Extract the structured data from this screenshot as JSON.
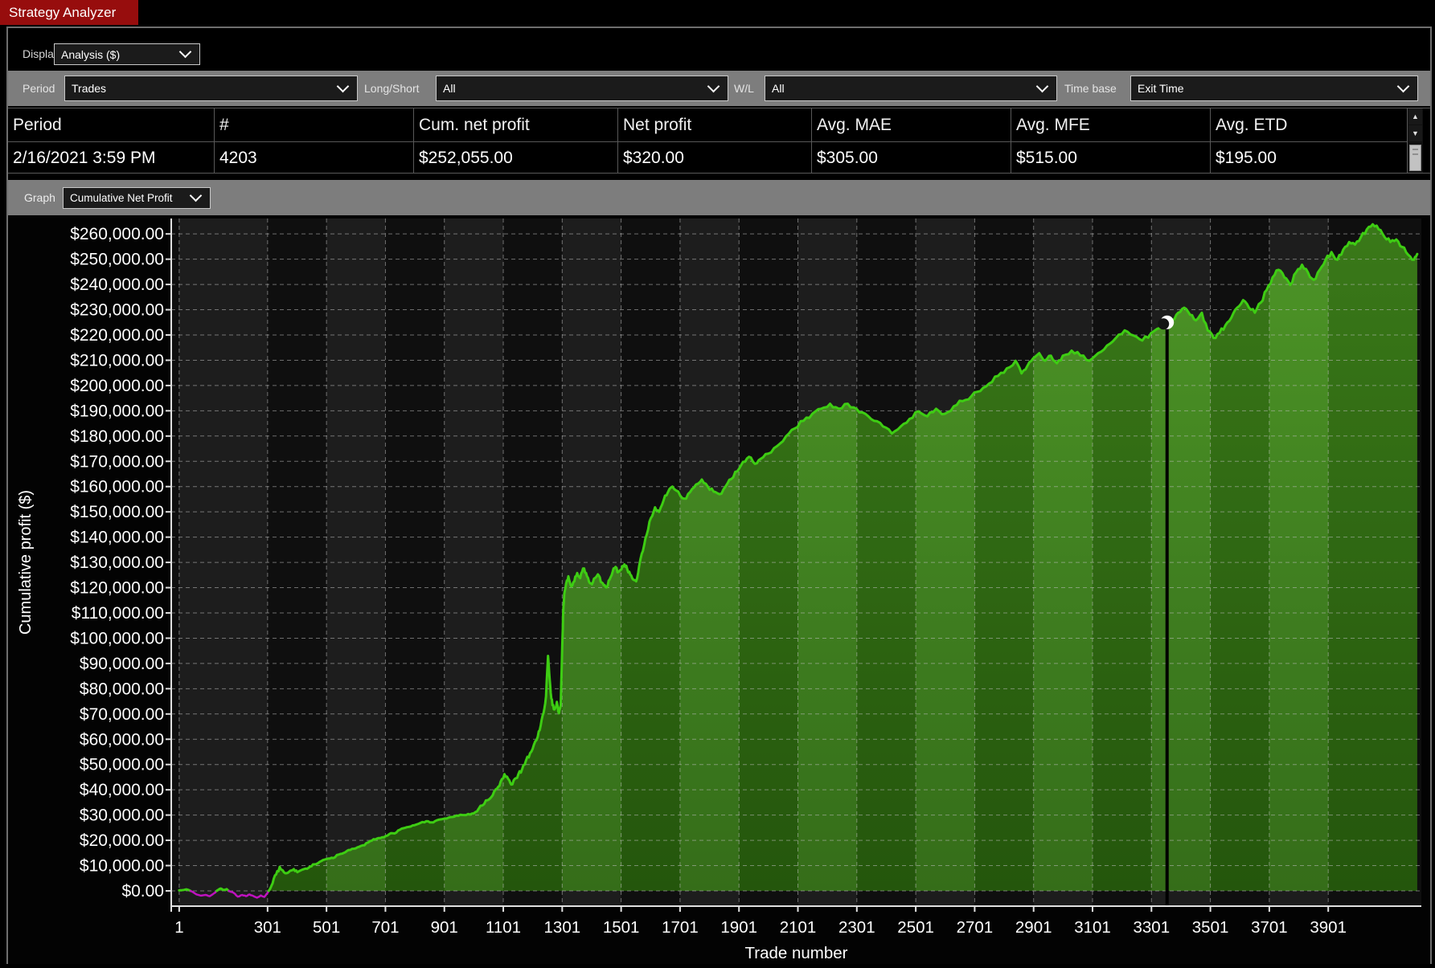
{
  "tab": {
    "title": "Strategy Analyzer"
  },
  "display": {
    "label": "Display",
    "value": "Analysis ($)"
  },
  "filters": {
    "period": {
      "label": "Period",
      "value": "Trades"
    },
    "long_short": {
      "label": "Long/Short",
      "value": "All"
    },
    "wl": {
      "label": "W/L",
      "value": "All"
    },
    "time_base": {
      "label": "Time base",
      "value": "Exit Time"
    }
  },
  "table": {
    "columns": [
      "Period",
      "#",
      "Cum. net profit",
      "Net profit",
      "Avg. MAE",
      "Avg. MFE",
      "Avg. ETD"
    ],
    "rows": [
      [
        "2/16/2021 3:59 PM",
        "4203",
        "$252,055.00",
        "$320.00",
        "$305.00",
        "$515.00",
        "$195.00"
      ]
    ]
  },
  "graph": {
    "label": "Graph",
    "value": "Cumulative Net Profit"
  },
  "icons": {
    "scroll_up": "▲",
    "scroll_down": "▼"
  },
  "chart_data": {
    "type": "area",
    "title": "Cumulative Net Profit",
    "xlabel": "Trade number",
    "ylabel": "Cumulative profit ($)",
    "xlim": [
      -26,
      4217
    ],
    "ylim": [
      -6050,
      266100
    ],
    "grid": "dashed",
    "x_ticks": [
      1,
      301,
      501,
      701,
      901,
      1101,
      1301,
      1501,
      1701,
      1901,
      2101,
      2301,
      2501,
      2701,
      2901,
      3101,
      3301,
      3501,
      3701,
      3901
    ],
    "y_ticks": [
      0,
      10000,
      20000,
      30000,
      40000,
      50000,
      60000,
      70000,
      80000,
      90000,
      100000,
      110000,
      120000,
      130000,
      140000,
      150000,
      160000,
      170000,
      180000,
      190000,
      200000,
      210000,
      220000,
      230000,
      240000,
      250000,
      260000
    ],
    "y_tick_labels": [
      "$0.00",
      "$10,000.00",
      "$20,000.00",
      "$30,000.00",
      "$40,000.00",
      "$50,000.00",
      "$60,000.00",
      "$70,000.00",
      "$80,000.00",
      "$90,000.00",
      "$100,000.00",
      "$110,000.00",
      "$120,000.00",
      "$130,000.00",
      "$140,000.00",
      "$150,000.00",
      "$160,000.00",
      "$170,000.00",
      "$180,000.00",
      "$190,000.00",
      "$200,000.00",
      "$210,000.00",
      "$220,000.00",
      "$230,000.00",
      "$240,000.00",
      "$250,000.00",
      "$260,000.00"
    ],
    "colors": {
      "positive_line": "#3ecd13",
      "negative_line": "#bf12bf",
      "fill_top": "#45901e",
      "fill_bottom": "#2c670f",
      "gridline": "#bebebe",
      "axis": "#e0e0e0",
      "crosshair": "#000000",
      "marker": "#ffffff",
      "plot_bg": "#131313",
      "tab_red": "#970d0d",
      "bar_gray": "#7d7d7d"
    },
    "crosshair": {
      "trade": 3354,
      "value": 225000
    },
    "series": [
      {
        "name": "Cumulative net profit",
        "points": [
          [
            1,
            200
          ],
          [
            25,
            600
          ],
          [
            45,
            -300
          ],
          [
            60,
            -1400
          ],
          [
            75,
            -1900
          ],
          [
            90,
            -1600
          ],
          [
            105,
            -2100
          ],
          [
            120,
            -900
          ],
          [
            132,
            300
          ],
          [
            142,
            900
          ],
          [
            152,
            400
          ],
          [
            162,
            700
          ],
          [
            172,
            -200
          ],
          [
            185,
            -700
          ],
          [
            200,
            -2300
          ],
          [
            215,
            -1600
          ],
          [
            228,
            -2100
          ],
          [
            240,
            -1400
          ],
          [
            252,
            -2000
          ],
          [
            265,
            -2700
          ],
          [
            278,
            -1800
          ],
          [
            290,
            -2400
          ],
          [
            300,
            -900
          ],
          [
            308,
            500
          ],
          [
            318,
            3000
          ],
          [
            330,
            6500
          ],
          [
            342,
            9500
          ],
          [
            352,
            8200
          ],
          [
            365,
            7000
          ],
          [
            378,
            8000
          ],
          [
            390,
            8600
          ],
          [
            402,
            7400
          ],
          [
            415,
            8200
          ],
          [
            430,
            8800
          ],
          [
            445,
            9600
          ],
          [
            460,
            10500
          ],
          [
            478,
            11500
          ],
          [
            495,
            12400
          ],
          [
            512,
            12800
          ],
          [
            530,
            13300
          ],
          [
            548,
            14600
          ],
          [
            565,
            15300
          ],
          [
            582,
            16200
          ],
          [
            600,
            16800
          ],
          [
            618,
            17800
          ],
          [
            636,
            18900
          ],
          [
            655,
            19900
          ],
          [
            672,
            20700
          ],
          [
            690,
            21200
          ],
          [
            708,
            21900
          ],
          [
            726,
            22800
          ],
          [
            744,
            23900
          ],
          [
            762,
            24800
          ],
          [
            780,
            25300
          ],
          [
            800,
            26000
          ],
          [
            820,
            26900
          ],
          [
            840,
            27600
          ],
          [
            858,
            27100
          ],
          [
            875,
            27900
          ],
          [
            895,
            28400
          ],
          [
            915,
            29000
          ],
          [
            935,
            29400
          ],
          [
            955,
            30100
          ],
          [
            975,
            30000
          ],
          [
            995,
            30600
          ],
          [
            1012,
            31500
          ],
          [
            1030,
            33800
          ],
          [
            1048,
            35900
          ],
          [
            1065,
            37800
          ],
          [
            1080,
            40500
          ],
          [
            1092,
            43200
          ],
          [
            1105,
            46200
          ],
          [
            1118,
            44200
          ],
          [
            1128,
            42100
          ],
          [
            1140,
            44300
          ],
          [
            1152,
            46100
          ],
          [
            1165,
            48200
          ],
          [
            1178,
            51500
          ],
          [
            1192,
            54500
          ],
          [
            1205,
            57800
          ],
          [
            1218,
            61000
          ],
          [
            1228,
            65500
          ],
          [
            1238,
            70500
          ],
          [
            1246,
            77000
          ],
          [
            1253,
            93000
          ],
          [
            1257,
            86000
          ],
          [
            1262,
            78500
          ],
          [
            1268,
            73500
          ],
          [
            1275,
            71800
          ],
          [
            1283,
            74800
          ],
          [
            1290,
            70300
          ],
          [
            1296,
            73500
          ],
          [
            1301,
            96000
          ],
          [
            1304,
            109000
          ],
          [
            1308,
            117500
          ],
          [
            1314,
            121500
          ],
          [
            1322,
            124500
          ],
          [
            1332,
            120500
          ],
          [
            1342,
            122500
          ],
          [
            1352,
            125800
          ],
          [
            1362,
            123800
          ],
          [
            1372,
            127600
          ],
          [
            1382,
            125800
          ],
          [
            1392,
            122300
          ],
          [
            1402,
            121300
          ],
          [
            1412,
            123800
          ],
          [
            1422,
            125300
          ],
          [
            1432,
            122300
          ],
          [
            1442,
            121000
          ],
          [
            1452,
            120100
          ],
          [
            1462,
            123200
          ],
          [
            1472,
            126200
          ],
          [
            1482,
            128200
          ],
          [
            1492,
            126200
          ],
          [
            1502,
            127200
          ],
          [
            1512,
            129200
          ],
          [
            1522,
            127200
          ],
          [
            1532,
            125200
          ],
          [
            1542,
            123200
          ],
          [
            1552,
            122500
          ],
          [
            1562,
            128500
          ],
          [
            1575,
            134500
          ],
          [
            1588,
            141000
          ],
          [
            1602,
            147500
          ],
          [
            1616,
            151800
          ],
          [
            1630,
            150000
          ],
          [
            1645,
            154500
          ],
          [
            1660,
            157800
          ],
          [
            1675,
            160000
          ],
          [
            1695,
            158000
          ],
          [
            1715,
            155200
          ],
          [
            1735,
            157800
          ],
          [
            1755,
            160800
          ],
          [
            1775,
            162800
          ],
          [
            1795,
            160000
          ],
          [
            1815,
            158000
          ],
          [
            1835,
            157000
          ],
          [
            1855,
            160000
          ],
          [
            1875,
            163000
          ],
          [
            1895,
            166000
          ],
          [
            1915,
            169800
          ],
          [
            1935,
            171800
          ],
          [
            1955,
            169000
          ],
          [
            1975,
            171000
          ],
          [
            2000,
            173000
          ],
          [
            2030,
            176000
          ],
          [
            2060,
            179800
          ],
          [
            2090,
            183000
          ],
          [
            2120,
            186000
          ],
          [
            2150,
            188800
          ],
          [
            2180,
            190800
          ],
          [
            2210,
            192800
          ],
          [
            2240,
            190800
          ],
          [
            2270,
            192800
          ],
          [
            2300,
            190800
          ],
          [
            2330,
            188800
          ],
          [
            2360,
            186000
          ],
          [
            2390,
            183800
          ],
          [
            2420,
            181000
          ],
          [
            2450,
            183800
          ],
          [
            2480,
            186800
          ],
          [
            2510,
            189800
          ],
          [
            2540,
            187800
          ],
          [
            2570,
            190800
          ],
          [
            2600,
            188800
          ],
          [
            2630,
            191800
          ],
          [
            2660,
            193800
          ],
          [
            2690,
            195800
          ],
          [
            2720,
            197800
          ],
          [
            2750,
            200800
          ],
          [
            2780,
            203800
          ],
          [
            2810,
            206800
          ],
          [
            2840,
            209800
          ],
          [
            2860,
            204800
          ],
          [
            2880,
            207800
          ],
          [
            2900,
            210800
          ],
          [
            2920,
            212800
          ],
          [
            2940,
            209800
          ],
          [
            2960,
            211800
          ],
          [
            2980,
            208800
          ],
          [
            3000,
            211800
          ],
          [
            3030,
            213800
          ],
          [
            3060,
            211800
          ],
          [
            3090,
            209800
          ],
          [
            3120,
            212800
          ],
          [
            3150,
            215800
          ],
          [
            3180,
            218800
          ],
          [
            3210,
            221800
          ],
          [
            3240,
            219800
          ],
          [
            3270,
            217800
          ],
          [
            3300,
            220800
          ],
          [
            3330,
            222800
          ],
          [
            3353,
            225000
          ],
          [
            3372,
            226000
          ],
          [
            3392,
            228800
          ],
          [
            3412,
            230800
          ],
          [
            3432,
            228000
          ],
          [
            3452,
            225800
          ],
          [
            3472,
            228800
          ],
          [
            3492,
            221800
          ],
          [
            3512,
            218800
          ],
          [
            3532,
            220800
          ],
          [
            3552,
            223800
          ],
          [
            3572,
            226800
          ],
          [
            3592,
            230800
          ],
          [
            3612,
            233800
          ],
          [
            3632,
            230800
          ],
          [
            3652,
            228800
          ],
          [
            3672,
            232800
          ],
          [
            3692,
            237800
          ],
          [
            3712,
            242800
          ],
          [
            3732,
            245800
          ],
          [
            3752,
            242800
          ],
          [
            3772,
            239800
          ],
          [
            3792,
            244800
          ],
          [
            3812,
            247800
          ],
          [
            3832,
            244800
          ],
          [
            3852,
            241800
          ],
          [
            3872,
            245800
          ],
          [
            3892,
            249800
          ],
          [
            3912,
            252800
          ],
          [
            3932,
            249800
          ],
          [
            3952,
            253800
          ],
          [
            3972,
            256800
          ],
          [
            3992,
            255800
          ],
          [
            4012,
            258800
          ],
          [
            4032,
            261800
          ],
          [
            4052,
            263800
          ],
          [
            4072,
            261800
          ],
          [
            4092,
            258800
          ],
          [
            4112,
            256800
          ],
          [
            4132,
            257800
          ],
          [
            4152,
            254800
          ],
          [
            4172,
            251800
          ],
          [
            4192,
            249800
          ],
          [
            4203,
            252055
          ]
        ]
      }
    ]
  }
}
